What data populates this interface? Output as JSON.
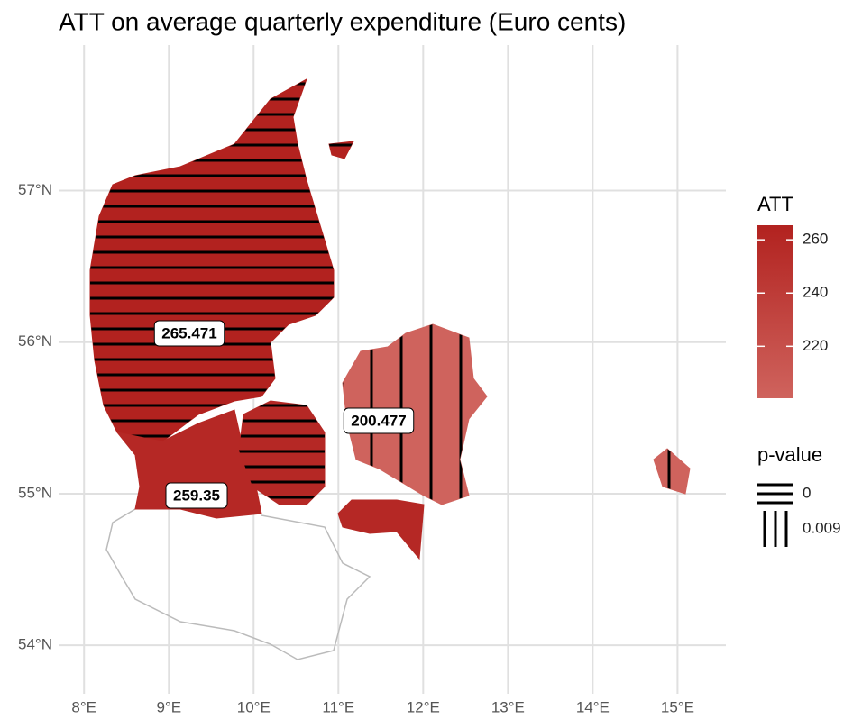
{
  "map": {
    "title": "ATT on average quarterly expenditure (Euro cents)",
    "xlim": [
      7.7,
      15.57
    ],
    "ylim": [
      53.68,
      57.96
    ],
    "xticks": [
      {
        "value": 8,
        "label": "8°E"
      },
      {
        "value": 9,
        "label": "9°E"
      },
      {
        "value": 10,
        "label": "10°E"
      },
      {
        "value": 11,
        "label": "11°E"
      },
      {
        "value": 12,
        "label": "12°E"
      },
      {
        "value": 13,
        "label": "13°E"
      },
      {
        "value": 14,
        "label": "14°E"
      },
      {
        "value": 15,
        "label": "15°E"
      }
    ],
    "yticks": [
      {
        "value": 54,
        "label": "54°N"
      },
      {
        "value": 55,
        "label": "55°N"
      },
      {
        "value": 56,
        "label": "56°N"
      },
      {
        "value": 57,
        "label": "57°N"
      }
    ],
    "regions": [
      {
        "value": 265.471,
        "value_label": "265.471"
      },
      {
        "value": 259.35,
        "value_label": "259.35"
      },
      {
        "value": 200.477,
        "value_label": "200.477"
      }
    ],
    "colors": {
      "low": "#cf635d",
      "high": "#b2221f"
    },
    "legend_att": {
      "title": "ATT",
      "ticks": [
        220,
        240,
        260
      ]
    },
    "legend_p": {
      "title": "p-value",
      "labels": [
        "0",
        "0.009"
      ]
    }
  }
}
